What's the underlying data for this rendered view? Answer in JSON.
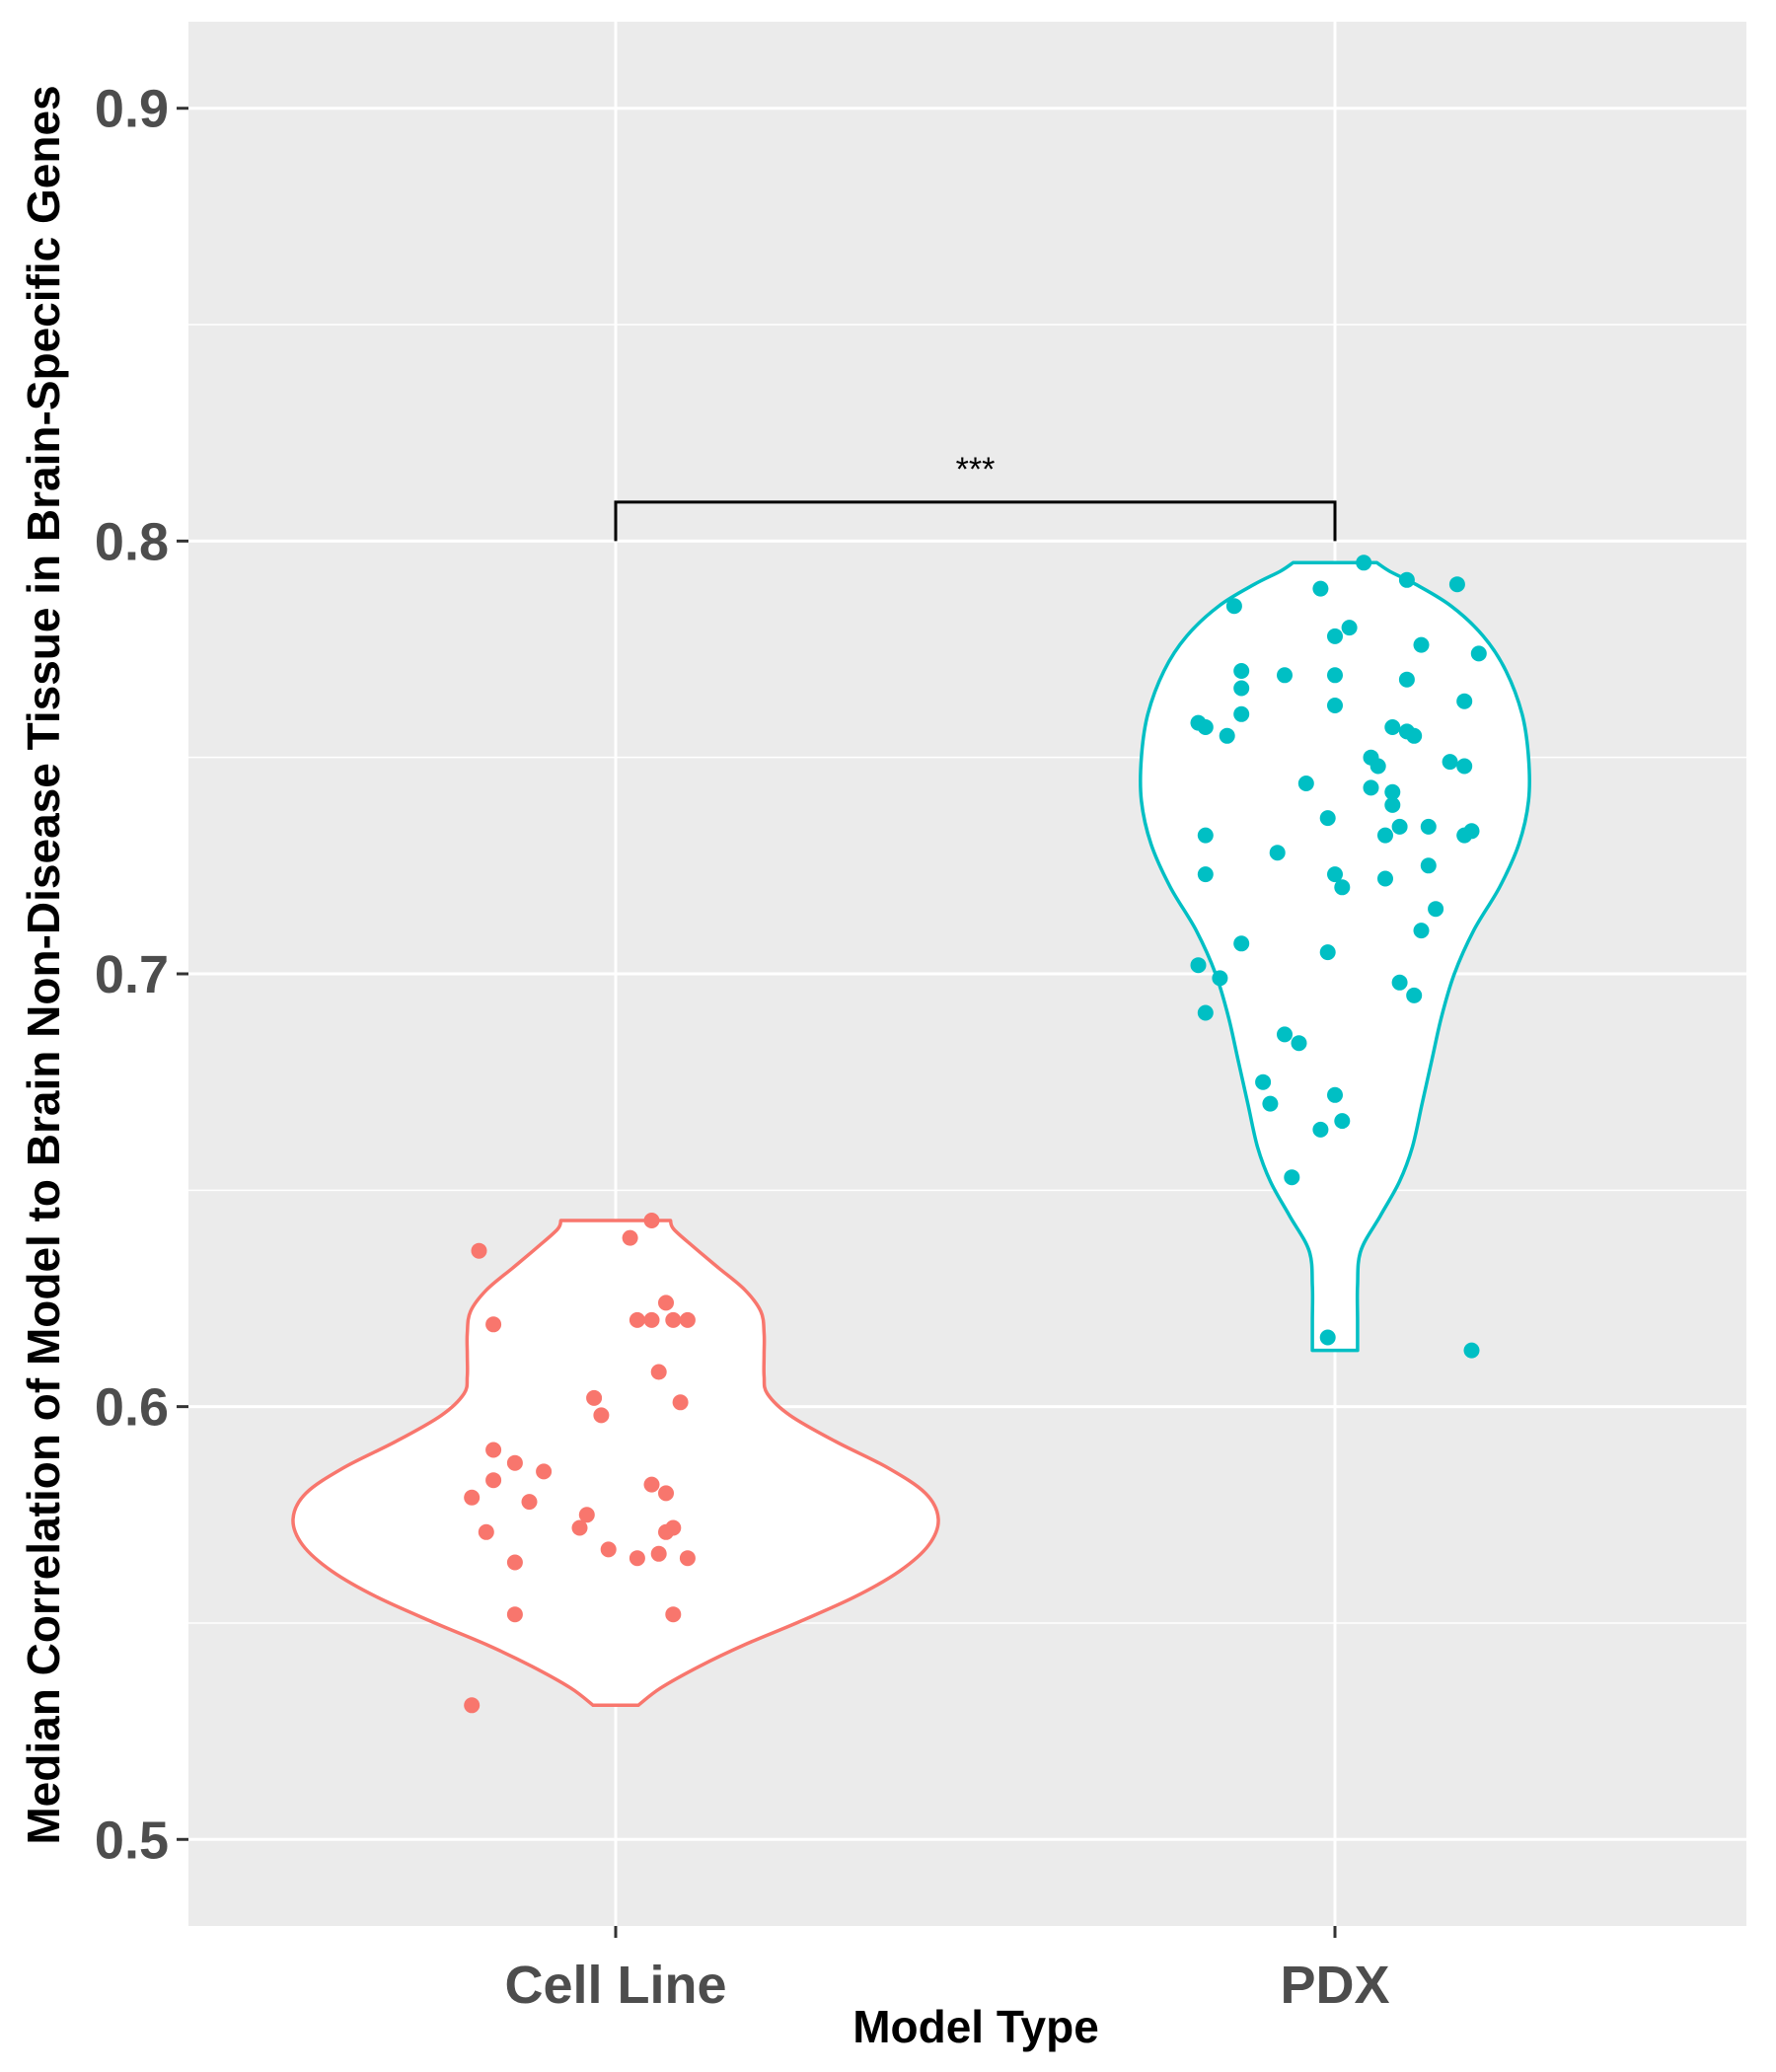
{
  "chart_data": {
    "type": "violin",
    "xlabel": "Model Type",
    "ylabel": "Median Correlation of Model to Brain Non-Disease Tissue in Brain-Specific Genes",
    "categories": [
      "Cell Line",
      "PDX"
    ],
    "ylim": [
      0.48,
      0.92
    ],
    "yticks": [
      0.5,
      0.6,
      0.7,
      0.8,
      0.9
    ],
    "ytick_labels": [
      "0.5",
      "0.6",
      "0.7",
      "0.8",
      "0.9"
    ],
    "grid": true,
    "legend": "none",
    "colors": {
      "Cell Line": "#F8766D",
      "PDX": "#00BFC4",
      "panel": "#EBEBEB",
      "grid": "#FFFFFF"
    },
    "significance": {
      "label": "***",
      "between": [
        "Cell Line",
        "PDX"
      ],
      "y": 0.809
    },
    "series": [
      {
        "name": "Cell Line",
        "color": "#F8766D",
        "violin": {
          "ymin": 0.531,
          "ymax": 0.643,
          "density": [
            [
              0.531,
              0.07
            ],
            [
              0.535,
              0.14
            ],
            [
              0.54,
              0.26
            ],
            [
              0.545,
              0.4
            ],
            [
              0.55,
              0.56
            ],
            [
              0.556,
              0.74
            ],
            [
              0.562,
              0.88
            ],
            [
              0.568,
              0.97
            ],
            [
              0.574,
              1.0
            ],
            [
              0.58,
              0.96
            ],
            [
              0.586,
              0.84
            ],
            [
              0.592,
              0.68
            ],
            [
              0.598,
              0.54
            ],
            [
              0.603,
              0.47
            ],
            [
              0.607,
              0.46
            ],
            [
              0.612,
              0.46
            ],
            [
              0.617,
              0.46
            ],
            [
              0.622,
              0.45
            ],
            [
              0.627,
              0.4
            ],
            [
              0.632,
              0.32
            ],
            [
              0.637,
              0.24
            ],
            [
              0.641,
              0.18
            ],
            [
              0.643,
              0.17
            ]
          ]
        },
        "points": [
          [
            0.05,
            0.643
          ],
          [
            -0.19,
            0.636
          ],
          [
            0.02,
            0.639
          ],
          [
            -0.17,
            0.619
          ],
          [
            0.07,
            0.624
          ],
          [
            0.1,
            0.62
          ],
          [
            0.05,
            0.62
          ],
          [
            0.08,
            0.62
          ],
          [
            0.03,
            0.62
          ],
          [
            0.06,
            0.608
          ],
          [
            0.09,
            0.601
          ],
          [
            -0.03,
            0.602
          ],
          [
            -0.02,
            0.598
          ],
          [
            -0.14,
            0.587
          ],
          [
            -0.17,
            0.59
          ],
          [
            -0.1,
            0.585
          ],
          [
            -0.17,
            0.583
          ],
          [
            -0.2,
            0.579
          ],
          [
            -0.12,
            0.578
          ],
          [
            0.05,
            0.582
          ],
          [
            0.07,
            0.58
          ],
          [
            -0.04,
            0.575
          ],
          [
            -0.05,
            0.572
          ],
          [
            0.08,
            0.572
          ],
          [
            0.07,
            0.571
          ],
          [
            -0.18,
            0.571
          ],
          [
            0.06,
            0.566
          ],
          [
            -0.01,
            0.567
          ],
          [
            -0.14,
            0.564
          ],
          [
            0.03,
            0.565
          ],
          [
            0.1,
            0.565
          ],
          [
            -0.14,
            0.552
          ],
          [
            0.08,
            0.552
          ],
          [
            -0.2,
            0.531
          ]
        ]
      },
      {
        "name": "PDX",
        "color": "#00BFC4",
        "violin": {
          "ymin": 0.613,
          "ymax": 0.795,
          "density": [
            [
              0.613,
              0.07
            ],
            [
              0.62,
              0.07
            ],
            [
              0.628,
              0.07
            ],
            [
              0.636,
              0.08
            ],
            [
              0.644,
              0.14
            ],
            [
              0.652,
              0.2
            ],
            [
              0.66,
              0.24
            ],
            [
              0.67,
              0.27
            ],
            [
              0.68,
              0.3
            ],
            [
              0.69,
              0.33
            ],
            [
              0.7,
              0.37
            ],
            [
              0.71,
              0.43
            ],
            [
              0.72,
              0.51
            ],
            [
              0.73,
              0.57
            ],
            [
              0.74,
              0.6
            ],
            [
              0.75,
              0.6
            ],
            [
              0.76,
              0.58
            ],
            [
              0.77,
              0.53
            ],
            [
              0.778,
              0.46
            ],
            [
              0.785,
              0.36
            ],
            [
              0.79,
              0.25
            ],
            [
              0.793,
              0.17
            ],
            [
              0.795,
              0.13
            ]
          ]
        },
        "points": [
          [
            0.04,
            0.795
          ],
          [
            -0.02,
            0.789
          ],
          [
            0.1,
            0.791
          ],
          [
            0.17,
            0.79
          ],
          [
            -0.14,
            0.785
          ],
          [
            0.02,
            0.78
          ],
          [
            0.12,
            0.776
          ],
          [
            0.2,
            0.774
          ],
          [
            0.0,
            0.778
          ],
          [
            -0.13,
            0.77
          ],
          [
            -0.07,
            0.769
          ],
          [
            0.0,
            0.769
          ],
          [
            0.1,
            0.768
          ],
          [
            -0.13,
            0.766
          ],
          [
            0.18,
            0.763
          ],
          [
            0.0,
            0.762
          ],
          [
            -0.13,
            0.76
          ],
          [
            -0.19,
            0.758
          ],
          [
            -0.18,
            0.757
          ],
          [
            0.08,
            0.757
          ],
          [
            0.1,
            0.756
          ],
          [
            0.11,
            0.755
          ],
          [
            -0.15,
            0.755
          ],
          [
            0.05,
            0.75
          ],
          [
            0.16,
            0.749
          ],
          [
            0.06,
            0.748
          ],
          [
            0.18,
            0.748
          ],
          [
            -0.04,
            0.744
          ],
          [
            0.05,
            0.743
          ],
          [
            0.08,
            0.742
          ],
          [
            0.08,
            0.739
          ],
          [
            -0.01,
            0.736
          ],
          [
            0.13,
            0.734
          ],
          [
            0.09,
            0.734
          ],
          [
            0.19,
            0.733
          ],
          [
            0.07,
            0.732
          ],
          [
            0.18,
            0.732
          ],
          [
            -0.18,
            0.732
          ],
          [
            -0.08,
            0.728
          ],
          [
            0.13,
            0.725
          ],
          [
            0.0,
            0.723
          ],
          [
            -0.18,
            0.723
          ],
          [
            0.07,
            0.722
          ],
          [
            0.01,
            0.72
          ],
          [
            0.14,
            0.715
          ],
          [
            0.12,
            0.71
          ],
          [
            -0.13,
            0.707
          ],
          [
            -0.01,
            0.705
          ],
          [
            -0.19,
            0.702
          ],
          [
            -0.16,
            0.699
          ],
          [
            0.09,
            0.698
          ],
          [
            0.11,
            0.695
          ],
          [
            -0.18,
            0.691
          ],
          [
            -0.07,
            0.686
          ],
          [
            -0.05,
            0.684
          ],
          [
            -0.1,
            0.675
          ],
          [
            0.0,
            0.672
          ],
          [
            -0.09,
            0.67
          ],
          [
            0.01,
            0.666
          ],
          [
            -0.02,
            0.664
          ],
          [
            -0.06,
            0.653
          ],
          [
            -0.01,
            0.616
          ],
          [
            0.19,
            0.613
          ]
        ]
      }
    ]
  }
}
